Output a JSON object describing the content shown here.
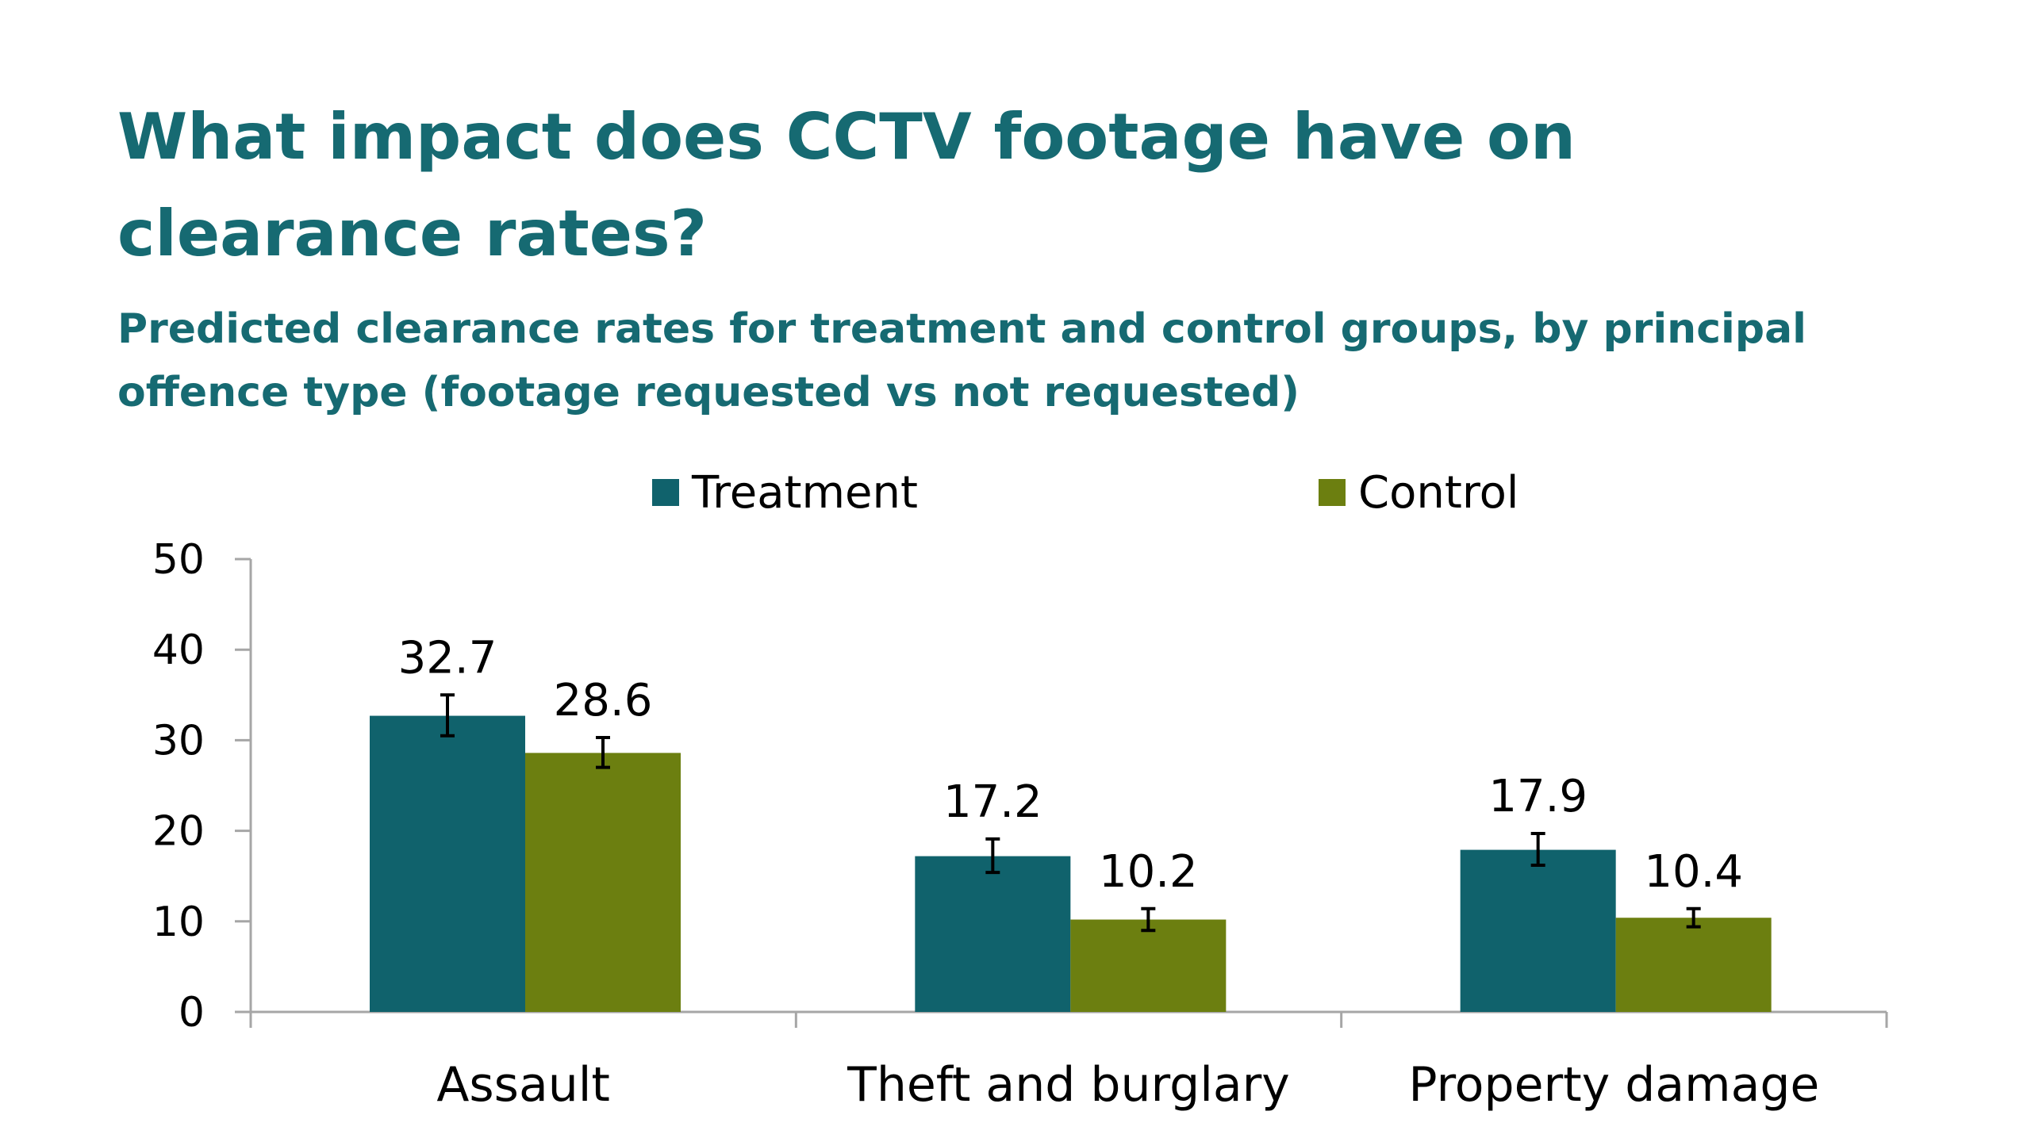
{
  "page": {
    "title": "What impact does CCTV footage have on clearance rates?",
    "subtitle": "Predicted clearance rates for treatment and control groups, by principal offence type (footage requested vs not requested)"
  },
  "chart_data": {
    "type": "bar",
    "categories": [
      "Assault",
      "Theft and burglary",
      "Property damage"
    ],
    "series": [
      {
        "name": "Treatment",
        "color": "#10626c",
        "values": [
          32.7,
          17.2,
          17.9
        ],
        "error_low": [
          30.5,
          15.4,
          16.2
        ],
        "error_high": [
          35.0,
          19.1,
          19.7
        ]
      },
      {
        "name": "Control",
        "color": "#6c7f10",
        "values": [
          28.6,
          10.2,
          10.4
        ],
        "error_low": [
          27.0,
          9.0,
          9.4
        ],
        "error_high": [
          30.3,
          11.4,
          11.4
        ]
      }
    ],
    "ylim": [
      0,
      50
    ],
    "yticks": [
      0,
      10,
      20,
      30,
      40,
      50
    ],
    "data_labels": [
      "32.7",
      "28.6",
      "17.2",
      "10.2",
      "17.9",
      "10.4"
    ],
    "legend_position": "top",
    "grid": false,
    "error_bars": true
  }
}
